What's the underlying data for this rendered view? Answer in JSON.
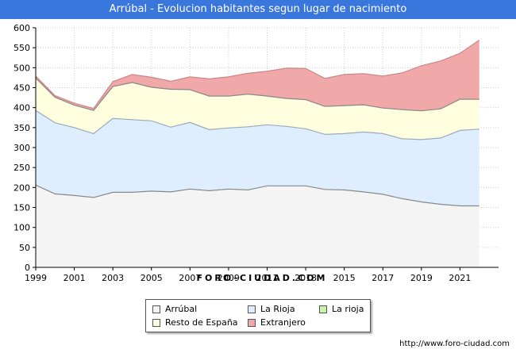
{
  "title": "Arrúbal - Evolucion habitantes segun lugar de nacimiento",
  "source": "http://www.foro-ciudad.com",
  "watermark": "FORO-CIUDAD.COM",
  "chart_data": {
    "type": "area",
    "stacked": true,
    "title": "Arrúbal - Evolucion habitantes segun lugar de nacimiento",
    "xlabel": "",
    "ylabel": "",
    "xlim": [
      1999,
      2023
    ],
    "ylim": [
      0,
      600
    ],
    "y_ticks": [
      0,
      50,
      100,
      150,
      200,
      250,
      300,
      350,
      400,
      450,
      500,
      550,
      600
    ],
    "x_ticks": [
      1999,
      2001,
      2003,
      2005,
      2007,
      2009,
      2011,
      2013,
      2015,
      2017,
      2019,
      2021
    ],
    "grid": true,
    "legend_position": "bottom",
    "x": [
      1999,
      2000,
      2001,
      2002,
      2003,
      2004,
      2005,
      2006,
      2007,
      2008,
      2009,
      2010,
      2011,
      2012,
      2013,
      2014,
      2015,
      2016,
      2017,
      2018,
      2019,
      2020,
      2021,
      2022
    ],
    "series": [
      {
        "name": "Arrúbal",
        "color": "#f4f4f4",
        "line": "#888888",
        "values": [
          206,
          184,
          180,
          175,
          188,
          188,
          191,
          189,
          196,
          192,
          196,
          194,
          204,
          204,
          204,
          195,
          194,
          189,
          183,
          172,
          164,
          158,
          154,
          154
        ]
      },
      {
        "name": "La Rioja",
        "color": "#dfeeff",
        "line": "#9aa9bc",
        "values": [
          187,
          178,
          170,
          160,
          185,
          182,
          176,
          162,
          167,
          153,
          153,
          158,
          153,
          149,
          143,
          138,
          141,
          150,
          152,
          150,
          156,
          166,
          189,
          192
        ]
      },
      {
        "name": "La rioja",
        "color": "#ccf2a4",
        "line": "#888888",
        "values": [
          0,
          0,
          0,
          0,
          0,
          0,
          0,
          0,
          0,
          0,
          0,
          0,
          0,
          0,
          0,
          0,
          0,
          0,
          0,
          0,
          0,
          0,
          0,
          0
        ]
      },
      {
        "name": "Resto de España",
        "color": "#ffffe0",
        "line": "#888888",
        "values": [
          81,
          64,
          56,
          58,
          80,
          93,
          84,
          95,
          82,
          84,
          80,
          82,
          72,
          70,
          73,
          70,
          70,
          68,
          64,
          73,
          72,
          73,
          78,
          75
        ]
      },
      {
        "name": "Extranjero",
        "color": "#f0a8a8",
        "line": "#c98888",
        "values": [
          5,
          4,
          5,
          5,
          12,
          20,
          25,
          20,
          32,
          43,
          48,
          52,
          62,
          76,
          78,
          70,
          78,
          78,
          80,
          92,
          113,
          120,
          115,
          148
        ]
      }
    ]
  }
}
